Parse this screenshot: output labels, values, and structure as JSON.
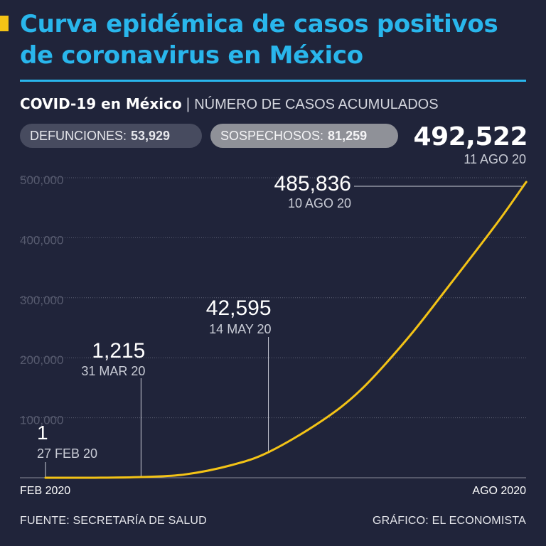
{
  "header": {
    "title": "Curva epidémica de casos positivos de coronavirus en México",
    "subtitle_bold": "COVID-19 en México",
    "subtitle_sep": "|",
    "subtitle_light": "NÚMERO DE CASOS ACUMULADOS"
  },
  "badges": {
    "deaths_label": "DEFUNCIONES:",
    "deaths_value": "53,929",
    "suspects_label": "SOSPECHOSOS:",
    "suspects_value": "81,259"
  },
  "latest": {
    "value": "492,522",
    "date": "11 AGO 20"
  },
  "axis": {
    "x_start_label": "FEB 2020",
    "x_end_label": "AGO 2020"
  },
  "footer": {
    "source": "FUENTE: SECRETARÍA DE SALUD",
    "credit": "GRÁFICO: EL ECONOMISTA"
  },
  "colors": {
    "background": "#20243a",
    "title": "#29b6ec",
    "line": "#f3c316",
    "grid": "#5a5e72",
    "callout": "#c9ccd6"
  },
  "chart_data": {
    "type": "line",
    "title": "COVID-19 en México",
    "xlabel": "",
    "ylabel": "",
    "xlim": [
      "2020-02-27",
      "2020-08-11"
    ],
    "ylim": [
      0,
      500000
    ],
    "yticks": [
      100000,
      200000,
      300000,
      400000,
      500000
    ],
    "ytick_labels": [
      "100,000",
      "200,000",
      "300,000",
      "400,000",
      "500,000"
    ],
    "grid": true,
    "series": [
      {
        "points": [
          {
            "x": "2020-02-27",
            "y": 1
          },
          {
            "x": "2020-03-15",
            "y": 41
          },
          {
            "x": "2020-03-31",
            "y": 1215
          },
          {
            "x": "2020-04-15",
            "y": 5399
          },
          {
            "x": "2020-05-01",
            "y": 20739
          },
          {
            "x": "2020-05-14",
            "y": 42595
          },
          {
            "x": "2020-06-01",
            "y": 93435
          },
          {
            "x": "2020-06-15",
            "y": 146837
          },
          {
            "x": "2020-07-01",
            "y": 231770
          },
          {
            "x": "2020-07-15",
            "y": 317635
          },
          {
            "x": "2020-08-01",
            "y": 424637
          },
          {
            "x": "2020-08-10",
            "y": 485836
          },
          {
            "x": "2020-08-11",
            "y": 492522
          }
        ]
      }
    ],
    "annotations": [
      {
        "x": "2020-02-27",
        "value": "1",
        "date": "27 FEB 20"
      },
      {
        "x": "2020-03-31",
        "value": "1,215",
        "date": "31 MAR 20"
      },
      {
        "x": "2020-05-14",
        "value": "42,595",
        "date": "14 MAY 20"
      },
      {
        "x": "2020-08-10",
        "value": "485,836",
        "date": "10 AGO 20"
      }
    ]
  }
}
